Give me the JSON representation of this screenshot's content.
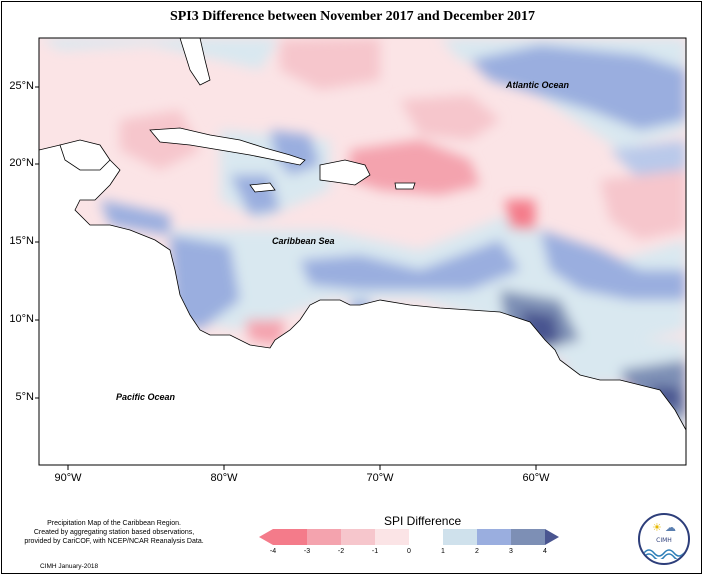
{
  "title": "SPI3 Difference between November 2017 and December 2017",
  "y_axis_labels": [
    "25°N",
    "20°N",
    "15°N",
    "10°N",
    "5°N"
  ],
  "x_axis_labels": [
    "90°W",
    "80°W",
    "70°W",
    "60°W"
  ],
  "map_labels": {
    "atlantic": "Atlantic Ocean",
    "caribbean": "Caribbean Sea",
    "pacific": "Pacific Ocean"
  },
  "credit": {
    "line1": "Precipitation Map of the Caribbean Region.",
    "line2": "Created by aggregating station based observations,",
    "line3": "provided by CariCOF, with NCEP/NCAR Reanalysis Data.",
    "date": "CIMH January-2018"
  },
  "legend": {
    "title": "SPI Difference",
    "ticks": [
      "-4",
      "-3",
      "-2",
      "-1",
      "0",
      "1",
      "2",
      "3",
      "4"
    ],
    "colors": [
      "#f47b8a",
      "#f4a3ae",
      "#f6c6cc",
      "#fbe4e6",
      "#ffffff",
      "#cfe1ec",
      "#9aaedf",
      "#7d8fb5",
      "#4a5590"
    ]
  },
  "logo": {
    "text": "CIMH"
  }
}
